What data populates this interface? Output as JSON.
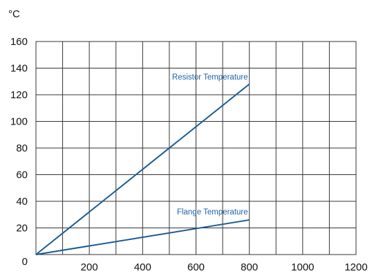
{
  "chart_data": {
    "type": "line",
    "ylabel": "°C",
    "xlim": [
      0,
      1200
    ],
    "ylim": [
      0,
      160
    ],
    "x_ticks": [
      200,
      400,
      600,
      800,
      1000,
      1200
    ],
    "y_ticks": [
      0,
      20,
      40,
      60,
      80,
      100,
      120,
      140,
      160
    ],
    "grid": true,
    "line_color": "#1a5a96",
    "label_color": "#1f63a8",
    "series": [
      {
        "name": "Resistor Temperature",
        "x": [
          0,
          800
        ],
        "y": [
          0,
          128
        ]
      },
      {
        "name": "Flange Temperature",
        "x": [
          0,
          800
        ],
        "y": [
          0,
          26
        ]
      }
    ]
  }
}
